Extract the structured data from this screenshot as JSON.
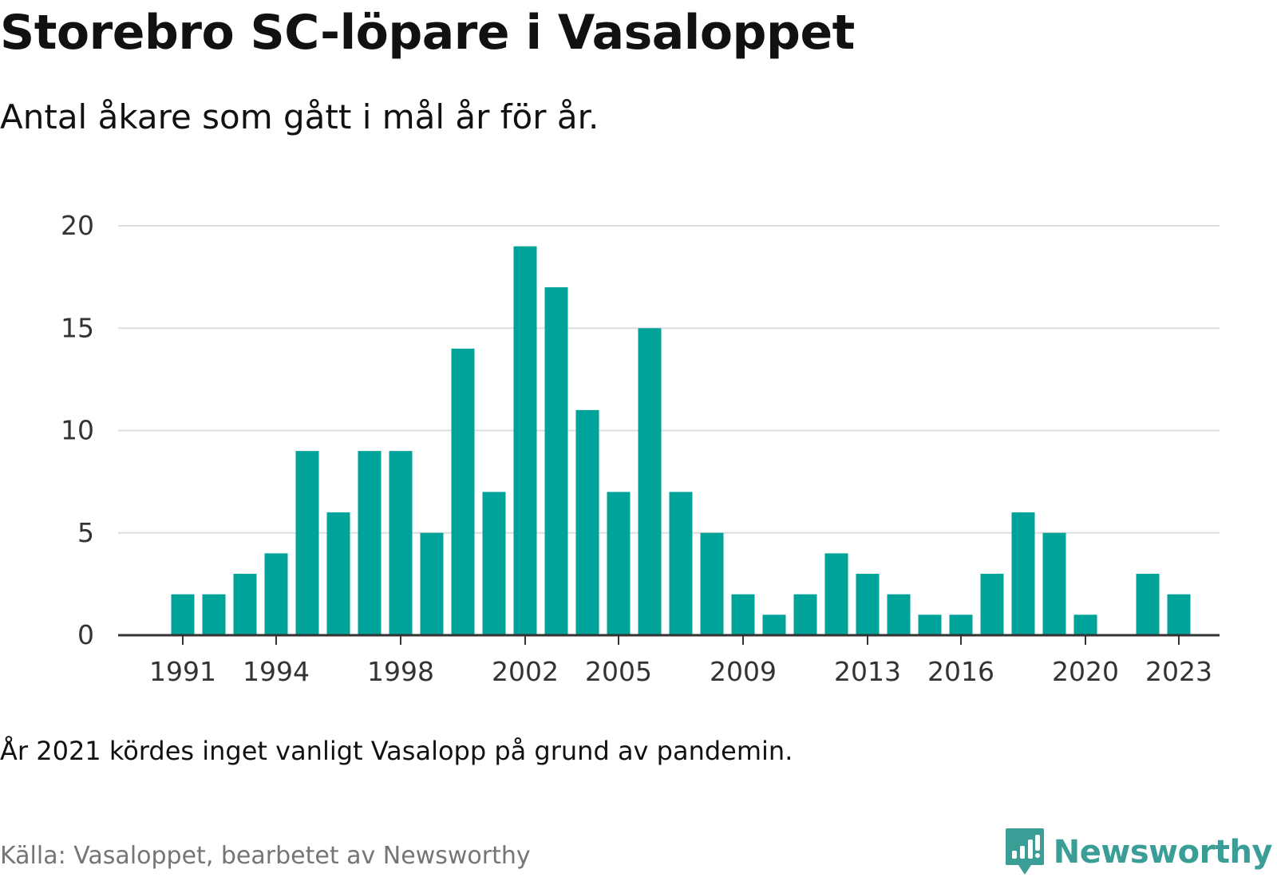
{
  "header": {
    "title": "Storebro SC-löpare i Vasaloppet",
    "subtitle": "Antal åkare som gått i mål år för år."
  },
  "chart_data": {
    "type": "bar",
    "title": "Storebro SC-löpare i Vasaloppet",
    "subtitle": "Antal åkare som gått i mål år för år.",
    "xlabel": "",
    "ylabel": "",
    "categories": [
      1991,
      1992,
      1993,
      1994,
      1995,
      1996,
      1997,
      1998,
      1999,
      2000,
      2001,
      2002,
      2003,
      2004,
      2005,
      2006,
      2007,
      2008,
      2009,
      2010,
      2011,
      2012,
      2013,
      2014,
      2015,
      2016,
      2017,
      2018,
      2019,
      2020,
      2021,
      2022,
      2023
    ],
    "values": [
      2,
      2,
      3,
      4,
      9,
      6,
      9,
      9,
      5,
      14,
      7,
      19,
      17,
      11,
      7,
      15,
      7,
      5,
      2,
      1,
      2,
      4,
      3,
      2,
      1,
      1,
      3,
      6,
      5,
      1,
      null,
      3,
      2
    ],
    "ylim": [
      0,
      20
    ],
    "yticks": [
      0,
      5,
      10,
      15,
      20
    ],
    "xtick_labels": [
      1991,
      1994,
      1998,
      2002,
      2005,
      2009,
      2013,
      2016,
      2020,
      2023
    ],
    "grid": true,
    "legend": "none",
    "bar_color": "#00a39a"
  },
  "footer": {
    "note": "År 2021 kördes inget vanligt Vasalopp på grund av pandemin.",
    "source": "Källa: Vasaloppet, bearbetet av Newsworthy",
    "brand": "Newsworthy"
  },
  "colors": {
    "bar": "#00a39a",
    "grid": "#dddddd",
    "axis": "#333333",
    "brand": "#3a9e97",
    "source_text": "#757575"
  },
  "icons": {
    "brand_logo": "newsworthy-logo-icon"
  }
}
